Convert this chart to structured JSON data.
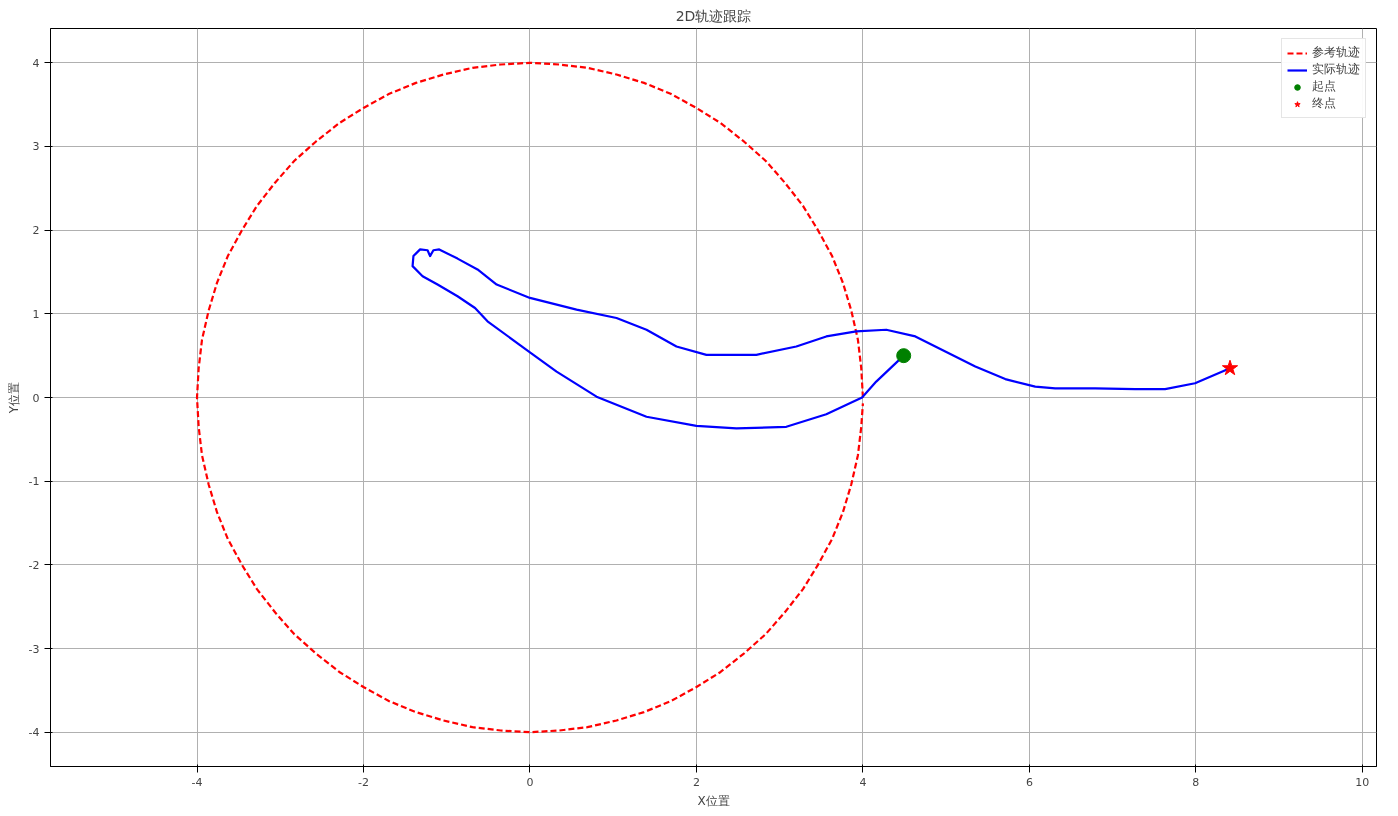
{
  "chart_data": {
    "type": "line",
    "title": "2D轨迹跟踪",
    "xlabel": "X位置",
    "ylabel": "Y位置",
    "xlim": [
      -5.76,
      10.17
    ],
    "ylim": [
      -4.41,
      4.41
    ],
    "xticks": [
      -4,
      -2,
      0,
      2,
      4,
      6,
      8,
      10
    ],
    "yticks": [
      -4,
      -3,
      -2,
      -1,
      0,
      1,
      2,
      3,
      4
    ],
    "grid": true,
    "legend": "top right",
    "series": [
      {
        "name": "参考轨迹",
        "line_style": "dashed",
        "color": "#ff0000",
        "x": [
          4,
          3.98,
          3.94,
          3.86,
          3.76,
          3.63,
          3.46,
          3.28,
          3.06,
          2.83,
          2.57,
          2.29,
          2,
          1.69,
          1.37,
          1.04,
          0.69,
          0.35,
          0,
          -0.35,
          -0.69,
          -1.04,
          -1.37,
          -1.69,
          -2,
          -2.29,
          -2.57,
          -2.83,
          -3.06,
          -3.28,
          -3.46,
          -3.63,
          -3.76,
          -3.86,
          -3.94,
          -3.98,
          -4,
          -3.98,
          -3.94,
          -3.86,
          -3.76,
          -3.63,
          -3.46,
          -3.28,
          -3.06,
          -2.83,
          -2.57,
          -2.29,
          -2,
          -1.69,
          -1.37,
          -1.04,
          -0.69,
          -0.35,
          0,
          0.35,
          0.69,
          1.04,
          1.37,
          1.69,
          2,
          2.29,
          2.57,
          2.83,
          3.06,
          3.28,
          3.46,
          3.63,
          3.76,
          3.86,
          3.94,
          3.98,
          4
        ],
        "values": [
          0,
          0.35,
          0.69,
          1.04,
          1.37,
          1.69,
          2,
          2.29,
          2.57,
          2.83,
          3.06,
          3.28,
          3.46,
          3.63,
          3.76,
          3.86,
          3.94,
          3.98,
          4,
          3.98,
          3.94,
          3.86,
          3.76,
          3.63,
          3.46,
          3.28,
          3.06,
          2.83,
          2.57,
          2.29,
          2,
          1.69,
          1.37,
          1.04,
          0.69,
          0.35,
          0,
          -0.35,
          -0.69,
          -1.04,
          -1.37,
          -1.69,
          -2,
          -2.29,
          -2.57,
          -2.83,
          -3.06,
          -3.28,
          -3.46,
          -3.63,
          -3.76,
          -3.86,
          -3.94,
          -3.98,
          -4,
          -3.98,
          -3.94,
          -3.86,
          -3.76,
          -3.63,
          -3.46,
          -3.28,
          -3.06,
          -2.83,
          -2.57,
          -2.29,
          -2,
          -1.69,
          -1.37,
          -1.04,
          -0.69,
          -0.35,
          -0.07
        ]
      },
      {
        "name": "实际轨迹",
        "line_style": "solid",
        "color": "#0000ff",
        "x": [
          4.49,
          4.16,
          3.99,
          3.56,
          3.08,
          2.48,
          2.0,
          1.4,
          0.8,
          0.32,
          0,
          -0.51,
          -0.66,
          -0.87,
          -1.11,
          -1.29,
          -1.41,
          -1.4,
          -1.32,
          -1.23,
          -1.2,
          -1.16,
          -1.09,
          -0.87,
          -0.63,
          -0.4,
          0,
          0.56,
          1.04,
          1.4,
          1.76,
          2.12,
          2.72,
          3.2,
          3.56,
          3.92,
          4.28,
          4.63,
          4.99,
          5.35,
          5.71,
          6.07,
          6.31,
          6.79,
          7.27,
          7.63,
          7.99,
          8.41
        ],
        "values": [
          0.5,
          0.19,
          0,
          -0.2,
          -0.35,
          -0.37,
          -0.34,
          -0.23,
          0.01,
          0.31,
          0.54,
          0.91,
          1.07,
          1.21,
          1.35,
          1.45,
          1.57,
          1.69,
          1.77,
          1.76,
          1.69,
          1.76,
          1.77,
          1.66,
          1.53,
          1.35,
          1.19,
          1.05,
          0.95,
          0.81,
          0.61,
          0.51,
          0.51,
          0.61,
          0.73,
          0.79,
          0.81,
          0.73,
          0.55,
          0.37,
          0.22,
          0.13,
          0.11,
          0.11,
          0.1,
          0.1,
          0.17,
          0.35
        ]
      },
      {
        "name": "起点",
        "type": "scatter",
        "marker": "circle",
        "color": "#008000",
        "x": [
          4.49
        ],
        "values": [
          0.5
        ]
      },
      {
        "name": "终点",
        "type": "scatter",
        "marker": "star",
        "color": "#ff0000",
        "x": [
          8.41
        ],
        "values": [
          0.35
        ]
      }
    ]
  }
}
